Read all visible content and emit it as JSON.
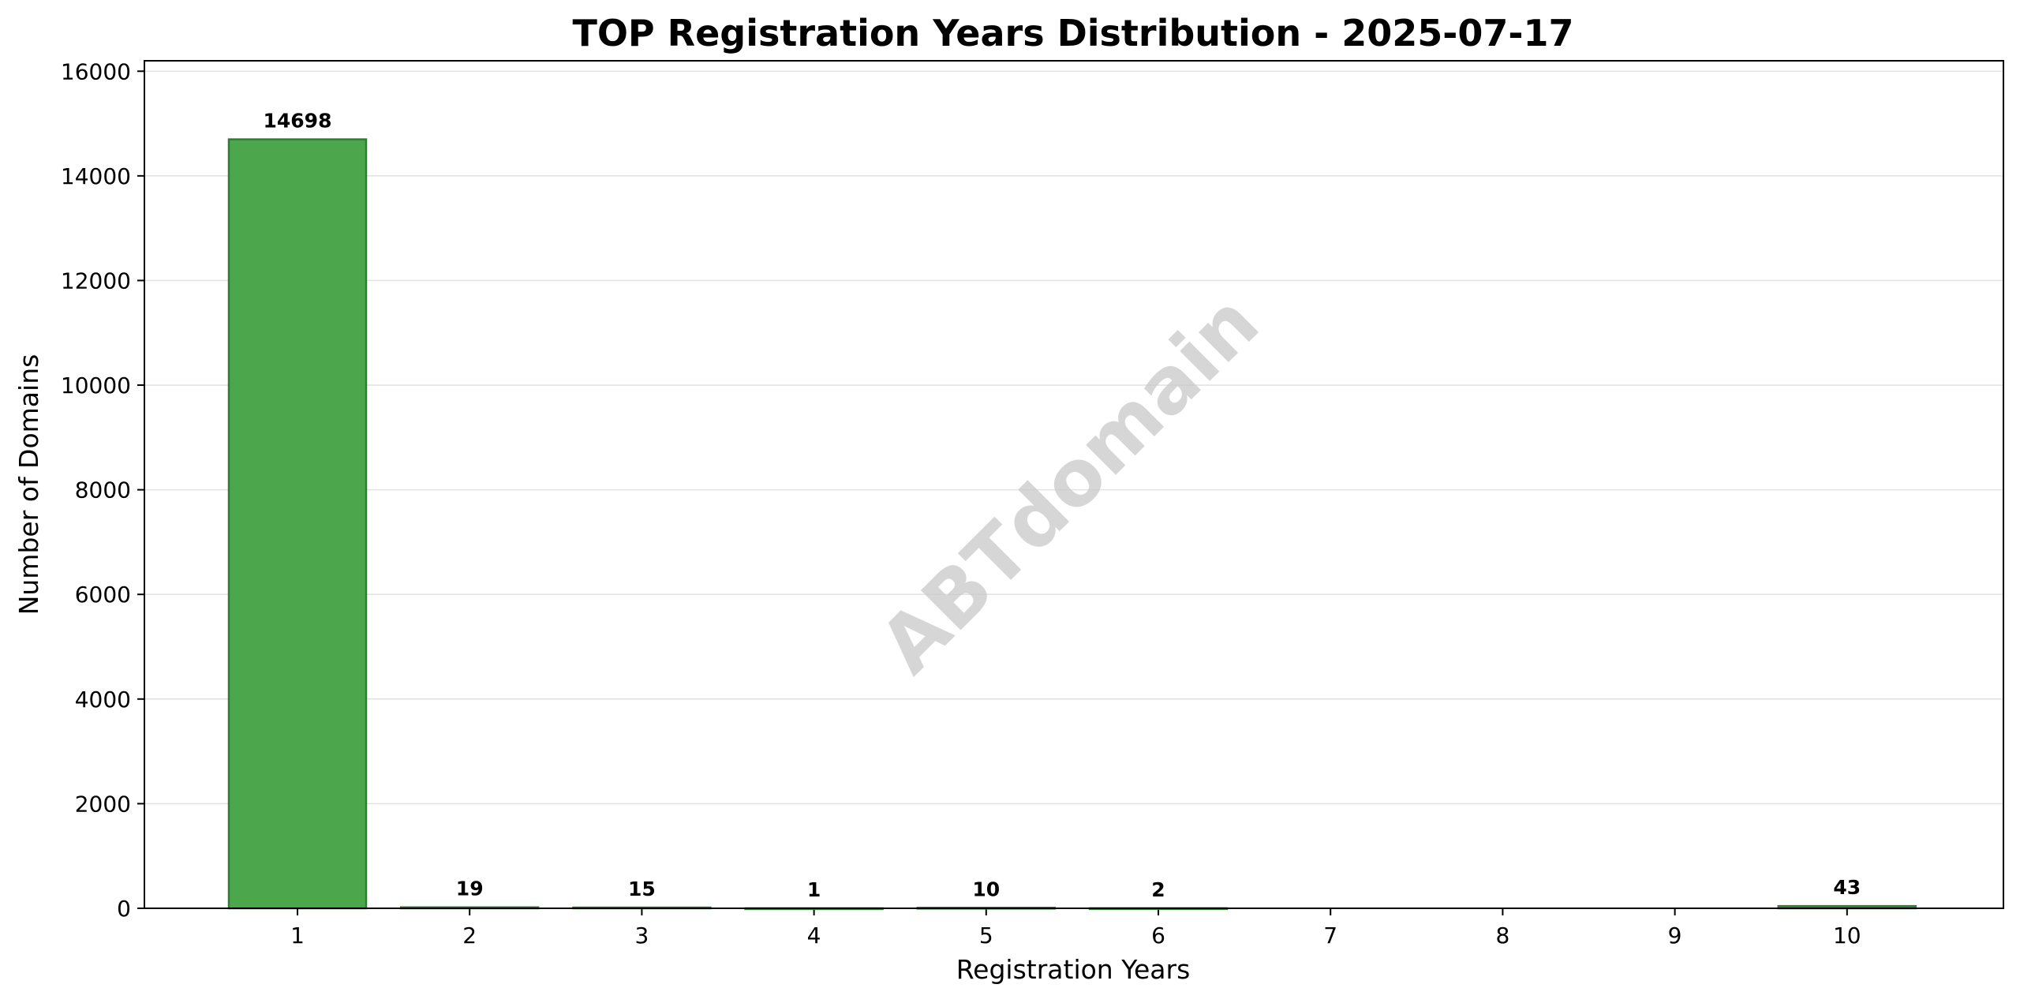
{
  "chart_data": {
    "type": "bar",
    "title": "TOP Registration Years Distribution - 2025-07-17",
    "xlabel": "Registration Years",
    "ylabel": "Number of Domains",
    "categories": [
      "1",
      "2",
      "3",
      "4",
      "5",
      "6",
      "7",
      "8",
      "9",
      "10"
    ],
    "values": [
      14698,
      19,
      15,
      1,
      10,
      2,
      0,
      0,
      0,
      43
    ],
    "data_labels": [
      "14698",
      "19",
      "15",
      "1",
      "10",
      "2",
      "",
      "",
      "",
      "43"
    ],
    "ylim": [
      0,
      16200
    ],
    "yticks": [
      0,
      2000,
      4000,
      6000,
      8000,
      10000,
      12000,
      14000,
      16000
    ],
    "ytick_labels": [
      "0",
      "2000",
      "4000",
      "6000",
      "8000",
      "10000",
      "12000",
      "14000",
      "16000"
    ],
    "grid": "y",
    "bar_color": "#4ca64c",
    "bar_edge_color": "#2e7d32",
    "watermark": "ABTdomain"
  }
}
